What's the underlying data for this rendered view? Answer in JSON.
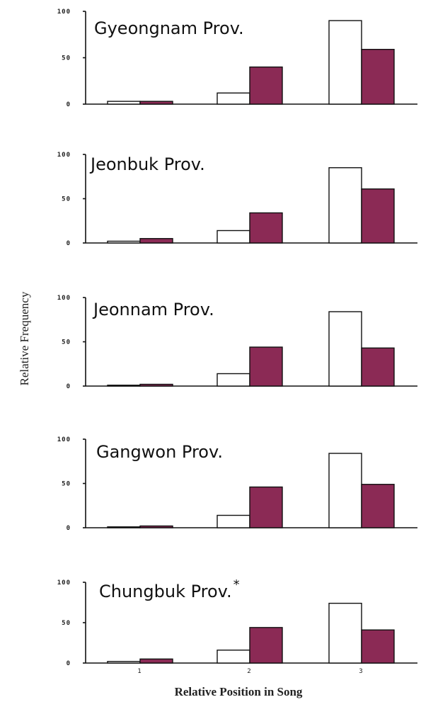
{
  "figure": {
    "xlabel": "Relative Position in Song",
    "ylabel": "Relative Frequency",
    "colors": {
      "series_a": "#ffffff",
      "series_b": "#8b2a55",
      "axis": "#111111"
    }
  },
  "chart_data": [
    {
      "type": "bar",
      "title": "Gyeongnam Prov.",
      "categories": [
        "1",
        "2",
        "3"
      ],
      "yticks": [
        "100",
        "50",
        "0"
      ],
      "ylim": [
        0,
        100
      ],
      "series": [
        {
          "values": [
            3,
            12,
            90
          ]
        },
        {
          "values": [
            3,
            40,
            59
          ]
        }
      ]
    },
    {
      "type": "bar",
      "title": "Jeonbuk Prov.",
      "categories": [
        "1",
        "2",
        "3"
      ],
      "yticks": [
        "100",
        "50",
        "0"
      ],
      "ylim": [
        0,
        100
      ],
      "series": [
        {
          "values": [
            2,
            14,
            85
          ]
        },
        {
          "values": [
            5,
            34,
            61
          ]
        }
      ]
    },
    {
      "type": "bar",
      "title": "Jeonnam Prov.",
      "categories": [
        "1",
        "2",
        "3"
      ],
      "yticks": [
        "100",
        "50",
        "0"
      ],
      "ylim": [
        0,
        100
      ],
      "series": [
        {
          "values": [
            1,
            14,
            84
          ]
        },
        {
          "values": [
            2,
            44,
            43
          ]
        }
      ]
    },
    {
      "type": "bar",
      "title": "Gangwon Prov.",
      "categories": [
        "1",
        "2",
        "3"
      ],
      "yticks": [
        "100",
        "50",
        "0"
      ],
      "ylim": [
        0,
        100
      ],
      "series": [
        {
          "values": [
            1,
            14,
            84
          ]
        },
        {
          "values": [
            2,
            46,
            49
          ]
        }
      ]
    },
    {
      "type": "bar",
      "title": "Chungbuk Prov.",
      "title_marker": "*",
      "categories": [
        "1",
        "2",
        "3"
      ],
      "yticks": [
        "100",
        "50",
        "0"
      ],
      "ylim": [
        0,
        100
      ],
      "series": [
        {
          "values": [
            2,
            16,
            74
          ]
        },
        {
          "values": [
            5,
            44,
            41
          ]
        }
      ]
    }
  ]
}
